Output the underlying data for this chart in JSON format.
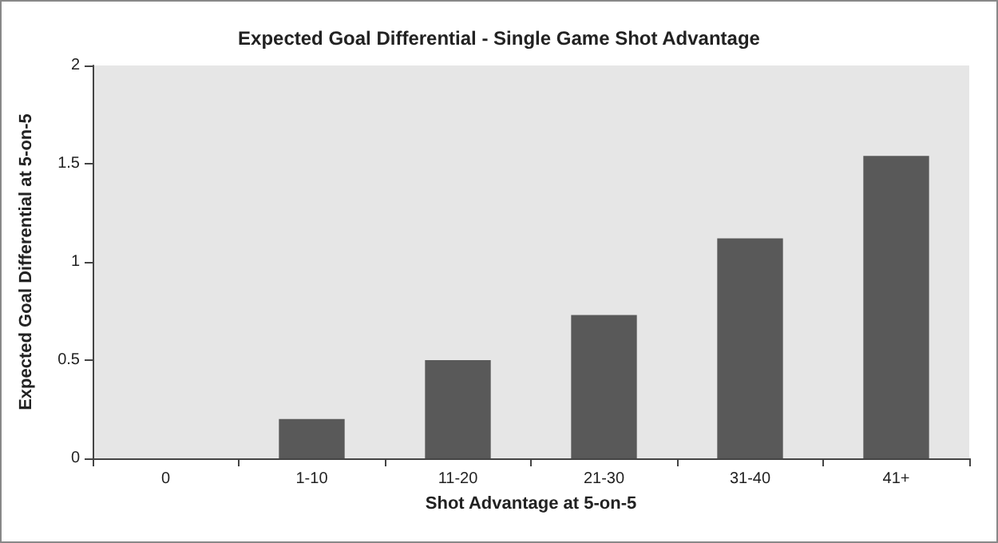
{
  "chart_data": {
    "type": "bar",
    "title": "Expected Goal Differential - Single Game Shot Advantage",
    "xlabel": "Shot Advantage at 5-on-5",
    "ylabel": "Expected Goal Differential at 5-on-5",
    "categories": [
      "0",
      "1-10",
      "11-20",
      "21-30",
      "31-40",
      "41+"
    ],
    "values": [
      0,
      0.2,
      0.5,
      0.73,
      1.12,
      1.54
    ],
    "color": "#595959",
    "ylim": [
      0,
      2
    ],
    "yticks": [
      0,
      0.5,
      1,
      1.5,
      2
    ],
    "grid": false
  }
}
